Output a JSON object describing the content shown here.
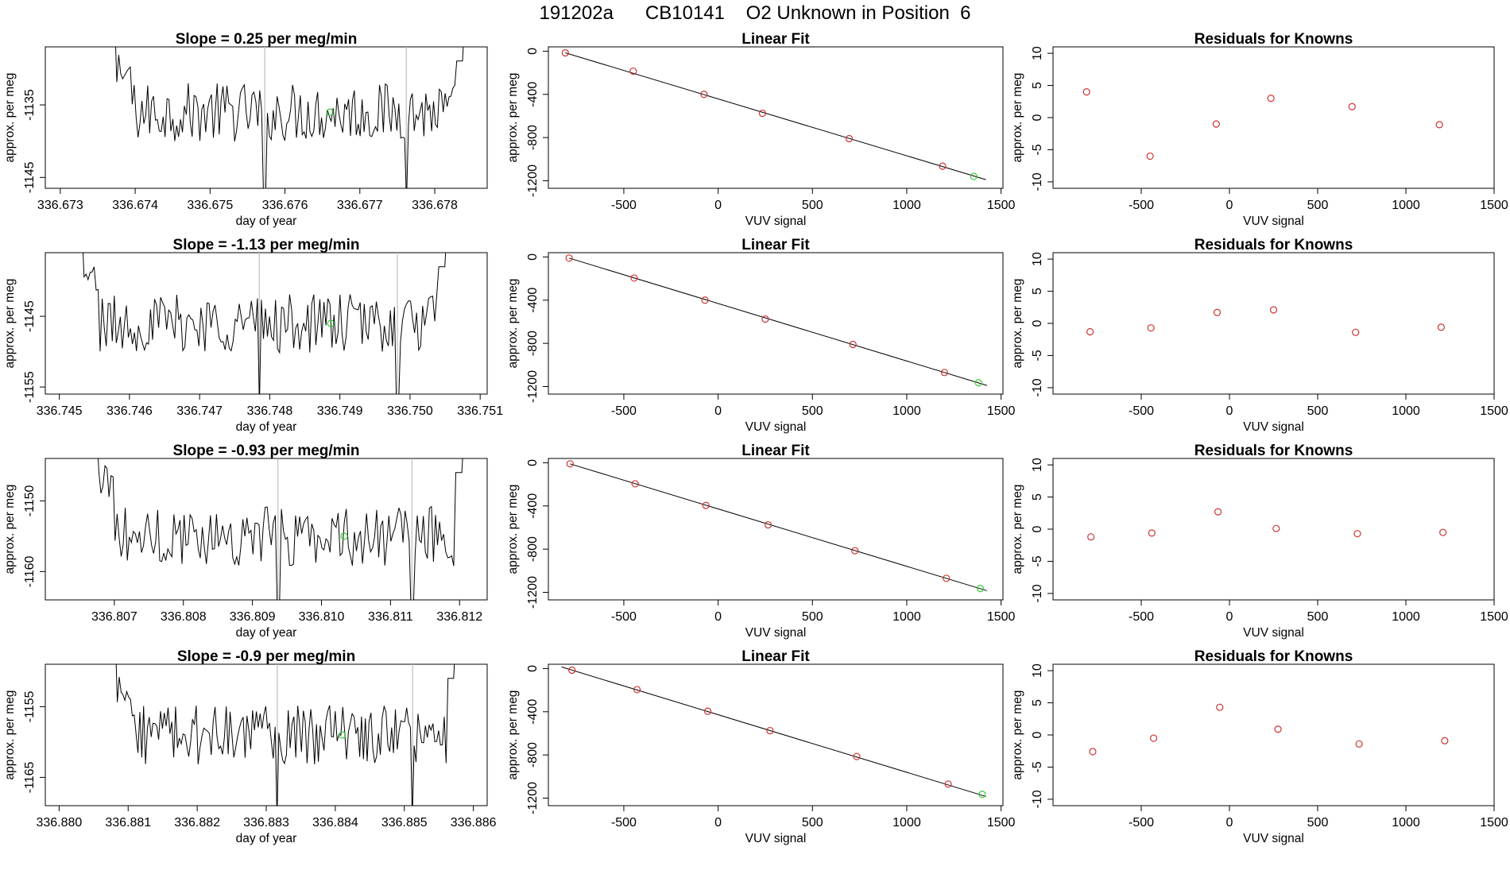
{
  "figure": {
    "title": "191202a      CB10141    O2 Unknown in Position  6"
  },
  "colors": {
    "series_line": "#000000",
    "known_point": "#cd3333",
    "unknown_point": "#33cc33",
    "reference_line": "#bebebe",
    "fit_line": "#000000"
  },
  "chart_data": [
    {
      "panel": "row1-timeseries",
      "type": "line",
      "title": "Slope =  0.25  per meg/min",
      "xlabel": "day of year",
      "ylabel": "approx. per meg",
      "xlim": [
        336.6728,
        336.6787
      ],
      "ylim": [
        -1146.5,
        -1127
      ],
      "xticks": [
        "336.673",
        "336.674",
        "336.675",
        "336.676",
        "336.677",
        "336.678"
      ],
      "yticks": [
        "-1135",
        "-1145"
      ],
      "series_start": 336.6736,
      "series_end": 336.6785,
      "reference_lines_x": [
        336.67573,
        336.67762
      ],
      "unknown_point": {
        "x": 336.6766,
        "y": -1136
      },
      "grid": false
    },
    {
      "panel": "row1-linear-fit",
      "type": "scatter",
      "title": "Linear Fit",
      "xlabel": "VUV signal",
      "ylabel": "approx. per meg",
      "xlim": [
        -900,
        1510
      ],
      "ylim": [
        -1270,
        40
      ],
      "xticks": [
        "-500",
        "0",
        "500",
        "1000",
        "1500"
      ],
      "yticks": [
        "0",
        "-400",
        "-800",
        "-1200"
      ],
      "knowns": [
        {
          "x": -810,
          "y": -15
        },
        {
          "x": -450,
          "y": -185
        },
        {
          "x": -75,
          "y": -400
        },
        {
          "x": 235,
          "y": -575
        },
        {
          "x": 695,
          "y": -810
        },
        {
          "x": 1190,
          "y": -1065
        }
      ],
      "unknown": {
        "x": 1355,
        "y": -1160
      },
      "fit_line": {
        "x": [
          -810,
          1420
        ],
        "y": [
          -15,
          -1190
        ]
      },
      "grid": false
    },
    {
      "panel": "row1-residuals",
      "type": "scatter",
      "title": "Residuals for Knowns",
      "xlabel": "VUV signal",
      "ylabel": "approx. per meg",
      "xlim": [
        -1000,
        1500
      ],
      "ylim": [
        -11,
        11
      ],
      "xticks": [
        "-500",
        "0",
        "500",
        "1000",
        "1500"
      ],
      "yticks": [
        "10",
        "5",
        "0",
        "-5",
        "-10"
      ],
      "values": [
        {
          "x": -810,
          "y": 4.0
        },
        {
          "x": -450,
          "y": -6.0
        },
        {
          "x": -75,
          "y": -1.0
        },
        {
          "x": 235,
          "y": 3.0
        },
        {
          "x": 695,
          "y": 1.7
        },
        {
          "x": 1190,
          "y": -1.1
        }
      ],
      "grid": false
    },
    {
      "panel": "row2-timeseries",
      "type": "line",
      "title": "Slope =  -1.13  per meg/min",
      "xlabel": "day of year",
      "ylabel": "approx. per meg",
      "xlim": [
        336.7448,
        336.7511
      ],
      "ylim": [
        -1156,
        -1136
      ],
      "xticks": [
        "336.745",
        "336.746",
        "336.747",
        "336.748",
        "336.749",
        "336.750",
        "336.751"
      ],
      "yticks": [
        "-1145",
        "-1155"
      ],
      "series_start": 336.74518,
      "series_end": 336.75064,
      "reference_lines_x": [
        336.74785,
        336.74982
      ],
      "unknown_point": {
        "x": 336.74887,
        "y": -1146
      },
      "grid": false
    },
    {
      "panel": "row2-linear-fit",
      "type": "scatter",
      "title": "Linear Fit",
      "xlabel": "VUV signal",
      "ylabel": "approx. per meg",
      "xlim": [
        -900,
        1510
      ],
      "ylim": [
        -1270,
        40
      ],
      "xticks": [
        "-500",
        "0",
        "500",
        "1000",
        "1500"
      ],
      "yticks": [
        "0",
        "-400",
        "-800",
        "-1200"
      ],
      "knowns": [
        {
          "x": -790,
          "y": -10
        },
        {
          "x": -445,
          "y": -195
        },
        {
          "x": -70,
          "y": -400
        },
        {
          "x": 250,
          "y": -575
        },
        {
          "x": 715,
          "y": -810
        },
        {
          "x": 1200,
          "y": -1070
        }
      ],
      "unknown": {
        "x": 1380,
        "y": -1165
      },
      "fit_line": {
        "x": [
          -790,
          1425
        ],
        "y": [
          -10,
          -1190
        ]
      },
      "grid": false
    },
    {
      "panel": "row2-residuals",
      "type": "scatter",
      "title": "Residuals for Knowns",
      "xlabel": "VUV signal",
      "ylabel": "approx. per meg",
      "xlim": [
        -1000,
        1500
      ],
      "ylim": [
        -11,
        11
      ],
      "xticks": [
        "-500",
        "0",
        "500",
        "1000",
        "1500"
      ],
      "yticks": [
        "10",
        "5",
        "0",
        "-5",
        "-10"
      ],
      "values": [
        {
          "x": -790,
          "y": -1.3
        },
        {
          "x": -445,
          "y": -0.7
        },
        {
          "x": -70,
          "y": 1.7
        },
        {
          "x": 250,
          "y": 2.1
        },
        {
          "x": 715,
          "y": -1.4
        },
        {
          "x": 1200,
          "y": -0.6
        }
      ],
      "grid": false
    },
    {
      "panel": "row3-timeseries",
      "type": "line",
      "title": "Slope =  -0.93  per meg/min",
      "xlabel": "day of year",
      "ylabel": "approx. per meg",
      "xlim": [
        336.806,
        336.8124
      ],
      "ylim": [
        -1164,
        -1144
      ],
      "xticks": [
        "336.807",
        "336.808",
        "336.809",
        "336.810",
        "336.811",
        "336.812"
      ],
      "yticks": [
        "-1150",
        "-1160"
      ],
      "series_start": 336.8066,
      "series_end": 336.81218,
      "reference_lines_x": [
        336.80937,
        336.81131
      ],
      "unknown_point": {
        "x": 336.81033,
        "y": -1155
      },
      "grid": false
    },
    {
      "panel": "row3-linear-fit",
      "type": "scatter",
      "title": "Linear Fit",
      "xlabel": "VUV signal",
      "ylabel": "approx. per meg",
      "xlim": [
        -900,
        1510
      ],
      "ylim": [
        -1270,
        40
      ],
      "xticks": [
        "-500",
        "0",
        "500",
        "1000",
        "1500"
      ],
      "yticks": [
        "0",
        "-400",
        "-800",
        "-1200"
      ],
      "knowns": [
        {
          "x": -785,
          "y": -10
        },
        {
          "x": -440,
          "y": -195
        },
        {
          "x": -65,
          "y": -395
        },
        {
          "x": 265,
          "y": -575
        },
        {
          "x": 725,
          "y": -815
        },
        {
          "x": 1210,
          "y": -1070
        }
      ],
      "unknown": {
        "x": 1390,
        "y": -1165
      },
      "fit_line": {
        "x": [
          -785,
          1425
        ],
        "y": [
          -10,
          -1185
        ]
      },
      "grid": false
    },
    {
      "panel": "row3-residuals",
      "type": "scatter",
      "title": "Residuals for Knowns",
      "xlabel": "VUV signal",
      "ylabel": "approx. per meg",
      "xlim": [
        -1000,
        1500
      ],
      "ylim": [
        -11,
        11
      ],
      "xticks": [
        "-500",
        "0",
        "500",
        "1000",
        "1500"
      ],
      "yticks": [
        "10",
        "5",
        "0",
        "-5",
        "-10"
      ],
      "values": [
        {
          "x": -785,
          "y": -1.2
        },
        {
          "x": -440,
          "y": -0.6
        },
        {
          "x": -65,
          "y": 2.7
        },
        {
          "x": 265,
          "y": 0.1
        },
        {
          "x": 725,
          "y": -0.7
        },
        {
          "x": 1210,
          "y": -0.5
        }
      ],
      "grid": false
    },
    {
      "panel": "row4-timeseries",
      "type": "line",
      "title": "Slope =  -0.9  per meg/min",
      "xlabel": "day of year",
      "ylabel": "approx. per meg",
      "xlim": [
        336.8798,
        336.8862
      ],
      "ylim": [
        -1169,
        -1149
      ],
      "xticks": [
        "336.880",
        "336.881",
        "336.882",
        "336.883",
        "336.884",
        "336.885",
        "336.886"
      ],
      "yticks": [
        "-1155",
        "-1165"
      ],
      "series_start": 336.88068,
      "series_end": 336.88585,
      "reference_lines_x": [
        336.88316,
        336.88512
      ],
      "unknown_point": {
        "x": 336.8841,
        "y": -1159
      },
      "grid": false
    },
    {
      "panel": "row4-linear-fit",
      "type": "scatter",
      "title": "Linear Fit",
      "xlabel": "VUV signal",
      "ylabel": "approx. per meg",
      "xlim": [
        -900,
        1510
      ],
      "ylim": [
        -1270,
        40
      ],
      "xticks": [
        "-500",
        "0",
        "500",
        "1000",
        "1500"
      ],
      "yticks": [
        "0",
        "-400",
        "-800",
        "-1200"
      ],
      "knowns": [
        {
          "x": -775,
          "y": -15
        },
        {
          "x": -430,
          "y": -195
        },
        {
          "x": -55,
          "y": -395
        },
        {
          "x": 275,
          "y": -575
        },
        {
          "x": 735,
          "y": -815
        },
        {
          "x": 1220,
          "y": -1070
        }
      ],
      "unknown": {
        "x": 1400,
        "y": -1165
      },
      "fit_line": {
        "x": [
          -830,
          1420
        ],
        "y": [
          15,
          -1185
        ]
      },
      "grid": false
    },
    {
      "panel": "row4-residuals",
      "type": "scatter",
      "title": "Residuals for Knowns",
      "xlabel": "VUV signal",
      "ylabel": "approx. per meg",
      "xlim": [
        -1000,
        1500
      ],
      "ylim": [
        -11,
        11
      ],
      "xticks": [
        "-500",
        "0",
        "500",
        "1000",
        "1500"
      ],
      "yticks": [
        "10",
        "5",
        "0",
        "-5",
        "-10"
      ],
      "values": [
        {
          "x": -775,
          "y": -2.6
        },
        {
          "x": -430,
          "y": -0.5
        },
        {
          "x": -55,
          "y": 4.3
        },
        {
          "x": 275,
          "y": 0.9
        },
        {
          "x": 735,
          "y": -1.4
        },
        {
          "x": 1220,
          "y": -0.9
        }
      ],
      "grid": false
    }
  ]
}
